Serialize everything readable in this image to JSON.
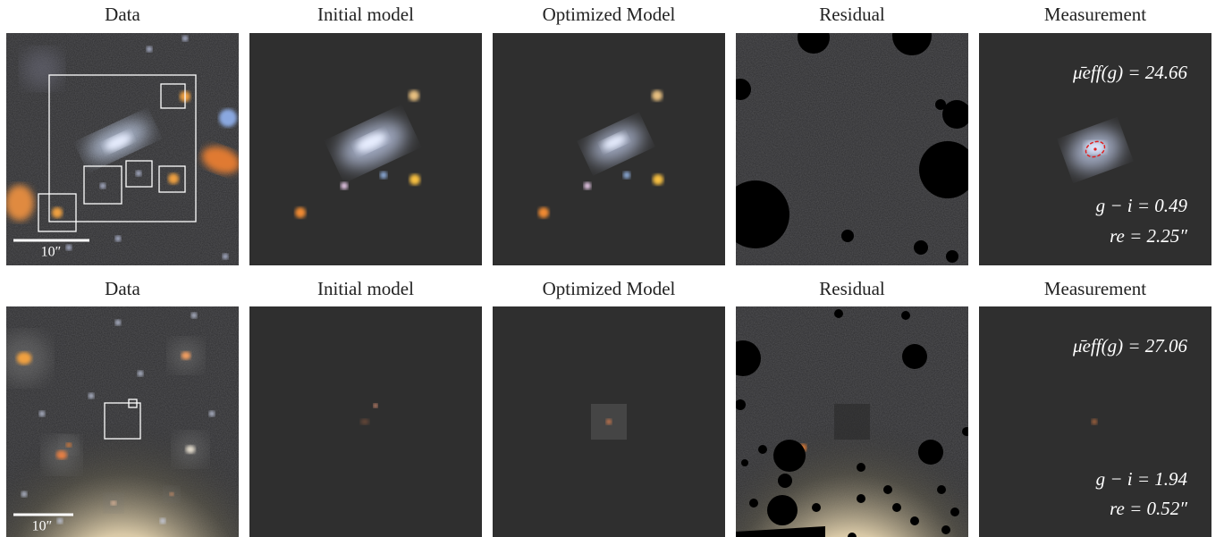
{
  "rows": [
    {
      "titles": [
        "Data",
        "Initial model",
        "Optimized Model",
        "Residual",
        "Measurement"
      ],
      "scale_bar": "10″",
      "measurement": {
        "mu": "μ̄eff(g) = 24.66",
        "color": "g − i = 0.49",
        "re": "re = 2.25″"
      }
    },
    {
      "titles": [
        "Data",
        "Initial model",
        "Optimized Model",
        "Residual",
        "Measurement"
      ],
      "scale_bar": "10″",
      "measurement": {
        "mu": "μ̄eff(g) = 27.06",
        "color": "g − i = 1.94",
        "re": "re = 0.52″"
      }
    }
  ]
}
